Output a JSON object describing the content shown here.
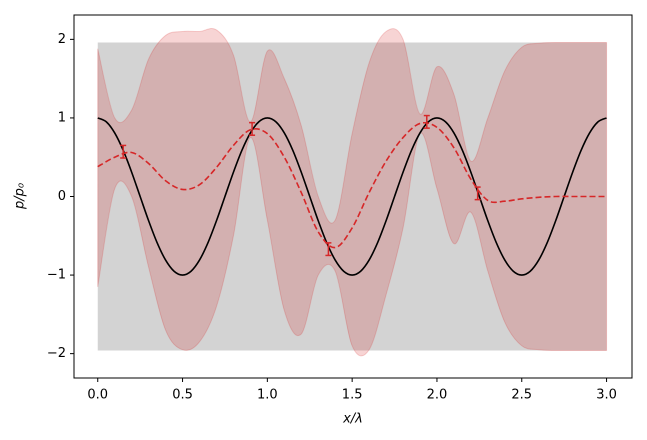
{
  "chart_data": {
    "type": "line",
    "xlabel": "x/λ",
    "ylabel": "p/p₀",
    "xlim": [
      -0.14,
      3.15
    ],
    "ylim": [
      -2.31,
      2.31
    ],
    "xticks": [
      {
        "value": 0,
        "label": "0.0"
      },
      {
        "value": 0.5,
        "label": "0.5"
      },
      {
        "value": 1,
        "label": "1.0"
      },
      {
        "value": 1.5,
        "label": "1.5"
      },
      {
        "value": 2,
        "label": "2.0"
      },
      {
        "value": 2.5,
        "label": "2.5"
      },
      {
        "value": 3,
        "label": "3.0"
      }
    ],
    "yticks": [
      {
        "value": -2,
        "label": "−2"
      },
      {
        "value": -1,
        "label": "−1"
      },
      0,
      1,
      2
    ],
    "prior_band": {
      "color": "#d3d3d3",
      "x": [
        0,
        3
      ],
      "lower": [
        -1.96,
        -1.96
      ],
      "upper": [
        1.96,
        1.96
      ]
    },
    "posterior_band": {
      "color": "#d62728",
      "x": [
        0,
        0.1,
        0.2,
        0.3,
        0.4,
        0.5,
        0.6,
        0.7,
        0.8,
        0.9,
        1.0,
        1.1,
        1.2,
        1.3,
        1.4,
        1.5,
        1.6,
        1.7,
        1.8,
        1.9,
        2.0,
        2.1,
        2.2,
        2.3,
        2.4,
        2.5,
        2.6,
        2.7,
        2.8,
        2.9,
        3.0
      ],
      "upper": [
        1.88,
        1.0,
        1.1,
        1.75,
        2.05,
        2.1,
        2.1,
        2.12,
        1.8,
        0.95,
        1.85,
        1.5,
        0.9,
        0.0,
        -0.3,
        0.8,
        1.7,
        2.1,
        2.0,
        1.05,
        1.65,
        1.3,
        0.45,
        1.0,
        1.6,
        1.9,
        1.95,
        1.96,
        1.96,
        1.96,
        1.96
      ],
      "lower": [
        -1.15,
        0.1,
        0.0,
        -0.9,
        -1.7,
        -1.95,
        -1.85,
        -1.4,
        -0.5,
        0.75,
        -0.3,
        -1.45,
        -1.75,
        -1.0,
        -0.95,
        -1.9,
        -1.95,
        -1.25,
        -0.4,
        0.8,
        0.1,
        -0.6,
        -0.2,
        -0.95,
        -1.6,
        -1.9,
        -1.95,
        -1.96,
        -1.96,
        -1.96,
        -1.96
      ]
    },
    "series": [
      {
        "color": "#000000",
        "dashed": false,
        "x": [
          0,
          0.05,
          0.1,
          0.15,
          0.2,
          0.25,
          0.3,
          0.35,
          0.4,
          0.45,
          0.5,
          0.55,
          0.6,
          0.65,
          0.7,
          0.75,
          0.8,
          0.85,
          0.9,
          0.95,
          1.0,
          1.05,
          1.1,
          1.15,
          1.2,
          1.25,
          1.3,
          1.35,
          1.4,
          1.45,
          1.5,
          1.55,
          1.6,
          1.65,
          1.7,
          1.75,
          1.8,
          1.85,
          1.9,
          1.95,
          2.0,
          2.05,
          2.1,
          2.15,
          2.2,
          2.25,
          2.3,
          2.35,
          2.4,
          2.45,
          2.5,
          2.55,
          2.6,
          2.65,
          2.7,
          2.75,
          2.8,
          2.85,
          2.9,
          2.95,
          3.0
        ],
        "values": [
          1,
          0.951,
          0.809,
          0.588,
          0.309,
          0,
          -0.309,
          -0.588,
          -0.809,
          -0.951,
          -1,
          -0.951,
          -0.809,
          -0.588,
          -0.309,
          0,
          0.309,
          0.588,
          0.809,
          0.951,
          1,
          0.951,
          0.809,
          0.588,
          0.309,
          0,
          -0.309,
          -0.588,
          -0.809,
          -0.951,
          -1,
          -0.951,
          -0.809,
          -0.588,
          -0.309,
          0,
          0.309,
          0.588,
          0.809,
          0.951,
          1,
          0.951,
          0.809,
          0.588,
          0.309,
          0,
          -0.309,
          -0.588,
          -0.809,
          -0.951,
          -1,
          -0.951,
          -0.809,
          -0.588,
          -0.309,
          0,
          0.309,
          0.588,
          0.809,
          0.951,
          1
        ]
      },
      {
        "color": "#d62728",
        "dashed": true,
        "x": [
          0,
          0.1,
          0.2,
          0.3,
          0.4,
          0.5,
          0.6,
          0.7,
          0.8,
          0.9,
          1.0,
          1.1,
          1.2,
          1.3,
          1.4,
          1.5,
          1.6,
          1.7,
          1.8,
          1.9,
          2.0,
          2.1,
          2.2,
          2.3,
          2.4,
          2.5,
          2.6,
          2.7,
          2.8,
          2.9,
          3.0
        ],
        "values": [
          0.38,
          0.5,
          0.56,
          0.42,
          0.2,
          0.09,
          0.15,
          0.37,
          0.65,
          0.85,
          0.8,
          0.5,
          0.05,
          -0.45,
          -0.65,
          -0.4,
          0.05,
          0.45,
          0.75,
          0.93,
          0.88,
          0.62,
          0.22,
          -0.05,
          -0.06,
          -0.03,
          -0.01,
          0,
          0,
          0,
          0
        ]
      }
    ],
    "observations": {
      "color": "#d62728",
      "x": [
        0.15,
        0.91,
        1.36,
        1.94,
        2.24
      ],
      "values": [
        0.57,
        0.86,
        -0.67,
        0.95,
        0.04
      ],
      "errors": [
        0.08,
        0.08,
        0.08,
        0.08,
        0.08
      ]
    }
  }
}
